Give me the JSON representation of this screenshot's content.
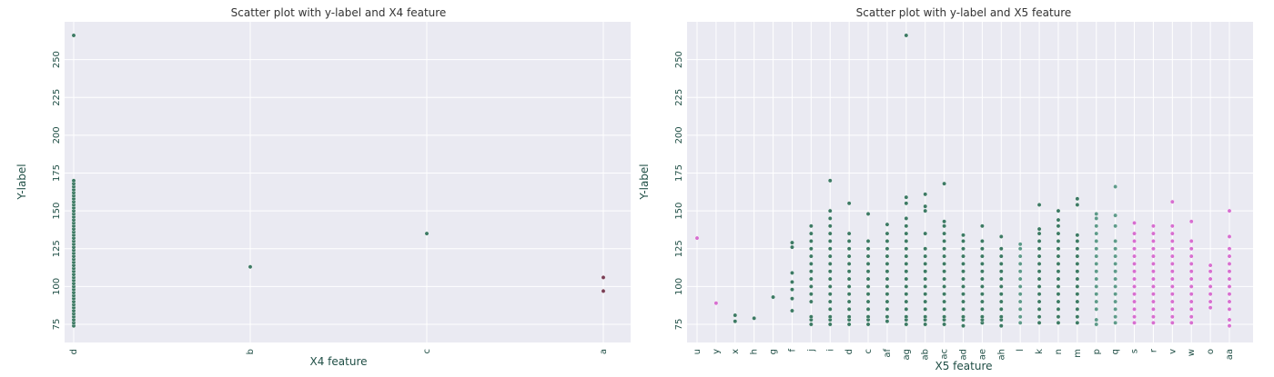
{
  "chart_data": [
    {
      "type": "scatter",
      "title": "Scatter plot with y-label and X4 feature",
      "xlabel": "X4 feature",
      "ylabel": "Y-label",
      "ylim": [
        63,
        275
      ],
      "yticks": [
        75,
        100,
        125,
        150,
        175,
        200,
        225,
        250
      ],
      "categories": [
        "d",
        "b",
        "c",
        "a"
      ],
      "grid": true,
      "series": [
        {
          "category": "d",
          "values": [
            74,
            76,
            78,
            80,
            82,
            84,
            86,
            88,
            90,
            92,
            94,
            96,
            98,
            100,
            102,
            104,
            106,
            108,
            110,
            112,
            114,
            116,
            118,
            120,
            122,
            124,
            126,
            128,
            130,
            132,
            134,
            136,
            138,
            140,
            142,
            144,
            146,
            148,
            150,
            152,
            154,
            156,
            158,
            160,
            162,
            164,
            166,
            168,
            170,
            266
          ]
        },
        {
          "category": "b",
          "values": [
            113
          ]
        },
        {
          "category": "c",
          "values": [
            135
          ]
        },
        {
          "category": "a",
          "values": [
            97,
            106
          ]
        }
      ]
    },
    {
      "type": "scatter",
      "title": "Scatter plot with y-label and X5 feature",
      "xlabel": "X5 feature",
      "ylabel": "Y-label",
      "ylim": [
        63,
        275
      ],
      "yticks": [
        75,
        100,
        125,
        150,
        175,
        200,
        225,
        250
      ],
      "categories": [
        "u",
        "y",
        "x",
        "h",
        "g",
        "f",
        "j",
        "i",
        "d",
        "c",
        "af",
        "ag",
        "ab",
        "ac",
        "ad",
        "ae",
        "ah",
        "l",
        "k",
        "n",
        "m",
        "p",
        "q",
        "s",
        "r",
        "v",
        "w",
        "o",
        "aa"
      ],
      "grid": true,
      "series": [
        {
          "category": "u",
          "values": [
            132
          ]
        },
        {
          "category": "y",
          "values": [
            89
          ]
        },
        {
          "category": "x",
          "values": [
            77,
            81
          ]
        },
        {
          "category": "h",
          "values": [
            79
          ]
        },
        {
          "category": "g",
          "values": [
            93
          ]
        },
        {
          "category": "f",
          "values": [
            84,
            92,
            98,
            103,
            109,
            126,
            129
          ]
        },
        {
          "category": "j",
          "values": [
            75,
            78,
            80,
            90,
            95,
            100,
            105,
            110,
            115,
            120,
            125,
            130,
            135,
            140
          ]
        },
        {
          "category": "i",
          "values": [
            75,
            78,
            80,
            85,
            90,
            95,
            100,
            105,
            110,
            115,
            120,
            125,
            130,
            135,
            140,
            145,
            150,
            170
          ]
        },
        {
          "category": "d",
          "values": [
            75,
            78,
            80,
            85,
            90,
            95,
            100,
            105,
            110,
            115,
            120,
            125,
            130,
            135,
            155
          ]
        },
        {
          "category": "c",
          "values": [
            75,
            78,
            80,
            85,
            90,
            95,
            100,
            105,
            110,
            115,
            120,
            125,
            130,
            148
          ]
        },
        {
          "category": "af",
          "values": [
            77,
            80,
            85,
            90,
            95,
            100,
            105,
            110,
            115,
            120,
            125,
            130,
            135,
            141
          ]
        },
        {
          "category": "ag",
          "values": [
            75,
            78,
            80,
            85,
            90,
            95,
            100,
            105,
            110,
            115,
            120,
            125,
            130,
            135,
            140,
            145,
            155,
            159,
            266
          ]
        },
        {
          "category": "ab",
          "values": [
            75,
            78,
            80,
            85,
            90,
            95,
            100,
            105,
            110,
            115,
            120,
            125,
            135,
            150,
            153,
            161
          ]
        },
        {
          "category": "ac",
          "values": [
            75,
            78,
            80,
            85,
            90,
            95,
            100,
            105,
            110,
            115,
            120,
            125,
            130,
            135,
            140,
            143,
            168
          ]
        },
        {
          "category": "ad",
          "values": [
            74,
            78,
            80,
            85,
            90,
            95,
            100,
            105,
            110,
            115,
            120,
            125,
            130,
            134
          ]
        },
        {
          "category": "ae",
          "values": [
            76,
            78,
            80,
            85,
            90,
            95,
            100,
            105,
            110,
            115,
            120,
            125,
            130,
            140
          ]
        },
        {
          "category": "ah",
          "values": [
            74,
            78,
            80,
            85,
            90,
            95,
            100,
            105,
            110,
            115,
            120,
            125,
            133
          ]
        },
        {
          "category": "l",
          "values": [
            76,
            80,
            85,
            90,
            95,
            100,
            105,
            110,
            115,
            120,
            125,
            128
          ]
        },
        {
          "category": "k",
          "values": [
            76,
            80,
            85,
            90,
            95,
            100,
            105,
            110,
            115,
            120,
            125,
            130,
            135,
            138,
            154
          ]
        },
        {
          "category": "n",
          "values": [
            76,
            80,
            85,
            90,
            95,
            100,
            105,
            110,
            115,
            120,
            125,
            130,
            135,
            140,
            144,
            150
          ]
        },
        {
          "category": "m",
          "values": [
            76,
            80,
            85,
            90,
            95,
            100,
            105,
            110,
            115,
            120,
            125,
            130,
            134,
            154,
            158
          ]
        },
        {
          "category": "p",
          "values": [
            75,
            78,
            85,
            90,
            95,
            100,
            105,
            110,
            115,
            120,
            125,
            130,
            135,
            140,
            145,
            148
          ]
        },
        {
          "category": "q",
          "values": [
            76,
            80,
            85,
            90,
            95,
            100,
            105,
            110,
            115,
            120,
            125,
            130,
            140,
            147,
            166
          ]
        },
        {
          "category": "s",
          "values": [
            76,
            80,
            85,
            90,
            95,
            100,
            105,
            110,
            115,
            120,
            125,
            130,
            135,
            142
          ]
        },
        {
          "category": "r",
          "values": [
            76,
            80,
            85,
            90,
            95,
            100,
            105,
            110,
            115,
            120,
            125,
            130,
            135,
            140
          ]
        },
        {
          "category": "v",
          "values": [
            76,
            80,
            85,
            90,
            95,
            100,
            105,
            110,
            115,
            120,
            125,
            130,
            135,
            140,
            156
          ]
        },
        {
          "category": "w",
          "values": [
            76,
            80,
            85,
            90,
            95,
            100,
            105,
            110,
            115,
            120,
            125,
            130,
            143
          ]
        },
        {
          "category": "o",
          "values": [
            86,
            90,
            95,
            100,
            105,
            110,
            114
          ]
        },
        {
          "category": "aa",
          "values": [
            74,
            78,
            85,
            90,
            95,
            100,
            105,
            110,
            115,
            120,
            125,
            133,
            150
          ]
        }
      ]
    }
  ],
  "colors": {
    "background": "#eaeaf2",
    "grid": "#ffffff",
    "point_dark": "#3d7a64",
    "point_light": "#5e9a8a",
    "point_pink": "#d76fd0",
    "text": "#1f4e45"
  }
}
